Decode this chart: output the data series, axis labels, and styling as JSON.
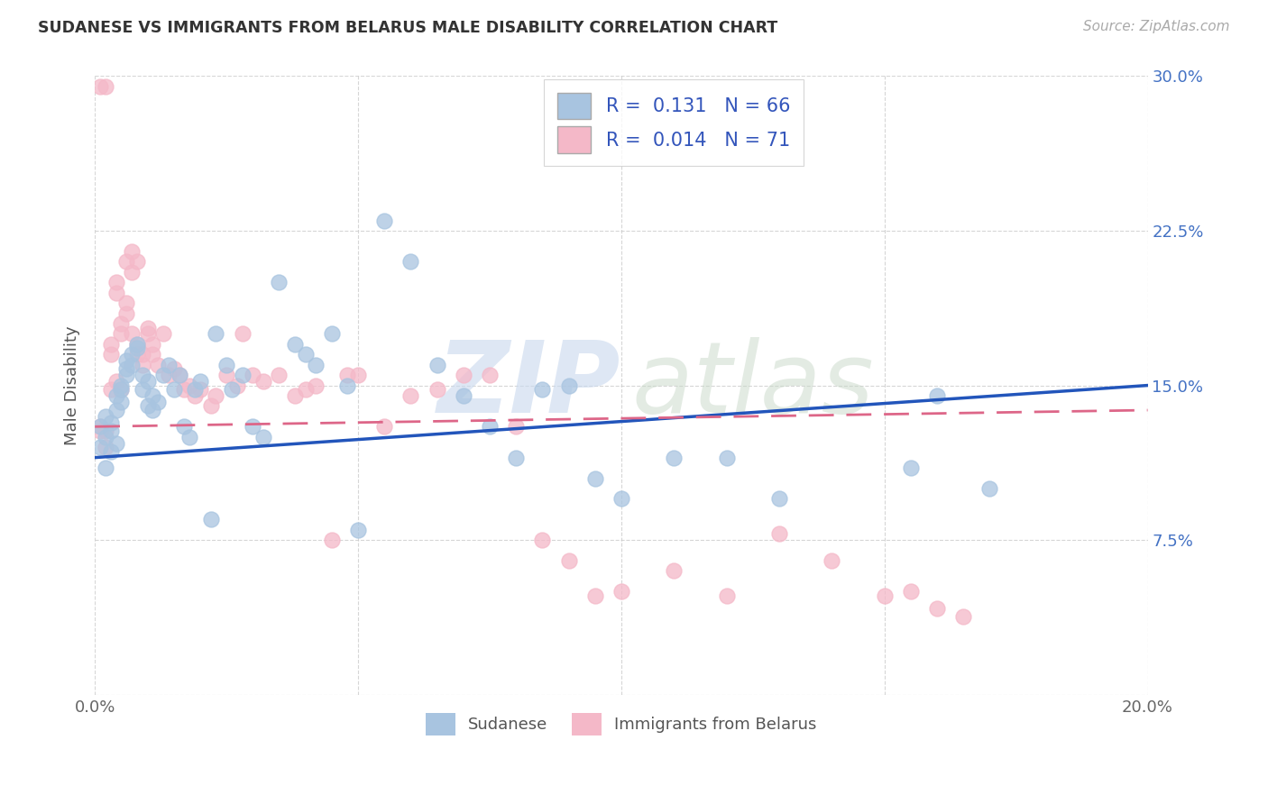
{
  "title": "SUDANESE VS IMMIGRANTS FROM BELARUS MALE DISABILITY CORRELATION CHART",
  "source": "Source: ZipAtlas.com",
  "ylabel": "Male Disability",
  "xlim": [
    0.0,
    0.2
  ],
  "ylim": [
    0.0,
    0.3
  ],
  "sudanese_R": 0.131,
  "sudanese_N": 66,
  "belarus_R": 0.014,
  "belarus_N": 71,
  "sudanese_color": "#a8c4e0",
  "belarus_color": "#f4b8c8",
  "sudanese_line_color": "#2255bb",
  "belarus_line_color": "#dd6688",
  "sudanese_x": [
    0.001,
    0.001,
    0.002,
    0.002,
    0.002,
    0.003,
    0.003,
    0.003,
    0.004,
    0.004,
    0.004,
    0.005,
    0.005,
    0.005,
    0.006,
    0.006,
    0.006,
    0.007,
    0.007,
    0.008,
    0.008,
    0.009,
    0.009,
    0.01,
    0.01,
    0.011,
    0.011,
    0.012,
    0.013,
    0.014,
    0.015,
    0.016,
    0.017,
    0.018,
    0.019,
    0.02,
    0.022,
    0.023,
    0.025,
    0.026,
    0.028,
    0.03,
    0.032,
    0.035,
    0.038,
    0.04,
    0.042,
    0.045,
    0.048,
    0.05,
    0.055,
    0.06,
    0.065,
    0.07,
    0.075,
    0.08,
    0.085,
    0.09,
    0.095,
    0.1,
    0.11,
    0.12,
    0.13,
    0.155,
    0.16,
    0.17
  ],
  "sudanese_y": [
    0.12,
    0.13,
    0.11,
    0.125,
    0.135,
    0.128,
    0.118,
    0.132,
    0.122,
    0.145,
    0.138,
    0.148,
    0.142,
    0.15,
    0.155,
    0.158,
    0.162,
    0.16,
    0.165,
    0.168,
    0.17,
    0.155,
    0.148,
    0.152,
    0.14,
    0.145,
    0.138,
    0.142,
    0.155,
    0.16,
    0.148,
    0.155,
    0.13,
    0.125,
    0.148,
    0.152,
    0.085,
    0.175,
    0.16,
    0.148,
    0.155,
    0.13,
    0.125,
    0.2,
    0.17,
    0.165,
    0.16,
    0.175,
    0.15,
    0.08,
    0.23,
    0.21,
    0.16,
    0.145,
    0.13,
    0.115,
    0.148,
    0.15,
    0.105,
    0.095,
    0.115,
    0.115,
    0.095,
    0.11,
    0.145,
    0.1
  ],
  "belarus_x": [
    0.001,
    0.001,
    0.001,
    0.002,
    0.002,
    0.002,
    0.003,
    0.003,
    0.003,
    0.004,
    0.004,
    0.004,
    0.005,
    0.005,
    0.005,
    0.006,
    0.006,
    0.006,
    0.007,
    0.007,
    0.007,
    0.008,
    0.008,
    0.008,
    0.009,
    0.009,
    0.01,
    0.01,
    0.011,
    0.011,
    0.012,
    0.013,
    0.014,
    0.015,
    0.016,
    0.017,
    0.018,
    0.019,
    0.02,
    0.022,
    0.023,
    0.025,
    0.027,
    0.028,
    0.03,
    0.032,
    0.035,
    0.038,
    0.04,
    0.042,
    0.045,
    0.048,
    0.05,
    0.055,
    0.06,
    0.065,
    0.07,
    0.075,
    0.08,
    0.085,
    0.09,
    0.095,
    0.1,
    0.11,
    0.12,
    0.13,
    0.14,
    0.15,
    0.155,
    0.16,
    0.165
  ],
  "belarus_y": [
    0.13,
    0.295,
    0.128,
    0.12,
    0.295,
    0.128,
    0.165,
    0.17,
    0.148,
    0.195,
    0.2,
    0.152,
    0.175,
    0.18,
    0.148,
    0.185,
    0.19,
    0.21,
    0.215,
    0.175,
    0.205,
    0.21,
    0.165,
    0.17,
    0.16,
    0.165,
    0.175,
    0.178,
    0.165,
    0.17,
    0.16,
    0.175,
    0.155,
    0.158,
    0.155,
    0.148,
    0.15,
    0.145,
    0.148,
    0.14,
    0.145,
    0.155,
    0.15,
    0.175,
    0.155,
    0.152,
    0.155,
    0.145,
    0.148,
    0.15,
    0.075,
    0.155,
    0.155,
    0.13,
    0.145,
    0.148,
    0.155,
    0.155,
    0.13,
    0.075,
    0.065,
    0.048,
    0.05,
    0.06,
    0.048,
    0.078,
    0.065,
    0.048,
    0.05,
    0.042,
    0.038
  ]
}
